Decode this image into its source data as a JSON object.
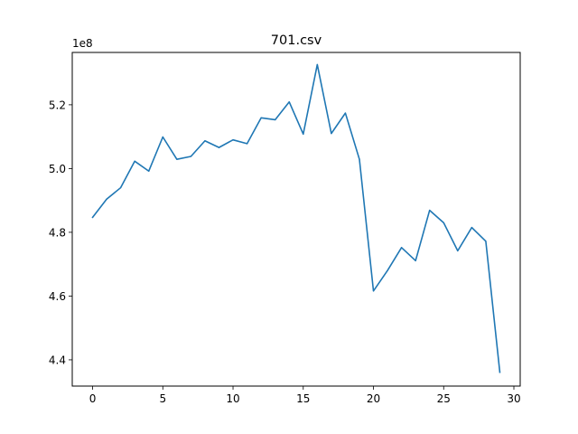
{
  "chart_data": {
    "type": "line",
    "title": "701.csv",
    "xlabel": "",
    "ylabel": "",
    "y_offset_label": "1e8",
    "xlim": [
      -1.45,
      30.45
    ],
    "ylim": [
      4.3176,
      5.3642
    ],
    "x_ticks": [
      0,
      5,
      10,
      15,
      20,
      25,
      30
    ],
    "x_tick_labels": [
      "0",
      "5",
      "10",
      "15",
      "20",
      "25",
      "30"
    ],
    "y_ticks": [
      4.4,
      4.6,
      4.8,
      5.0,
      5.2
    ],
    "y_tick_labels": [
      "4.4",
      "4.6",
      "4.8",
      "5.0",
      "5.2"
    ],
    "grid": false,
    "series": [
      {
        "color": "#1f77b4",
        "x": [
          0,
          1,
          2,
          3,
          4,
          5,
          6,
          7,
          8,
          9,
          10,
          11,
          12,
          13,
          14,
          15,
          16,
          17,
          18,
          19,
          20,
          21,
          22,
          23,
          24,
          25,
          26,
          27,
          28,
          29
        ],
        "values": [
          4.847,
          4.904,
          4.94,
          5.023,
          4.992,
          5.099,
          5.029,
          5.038,
          5.087,
          5.066,
          5.09,
          5.078,
          5.159,
          5.153,
          5.209,
          5.108,
          5.326,
          5.11,
          5.174,
          5.029,
          4.616,
          4.68,
          4.752,
          4.711,
          4.869,
          4.83,
          4.742,
          4.815,
          4.772,
          4.361
        ]
      }
    ]
  }
}
